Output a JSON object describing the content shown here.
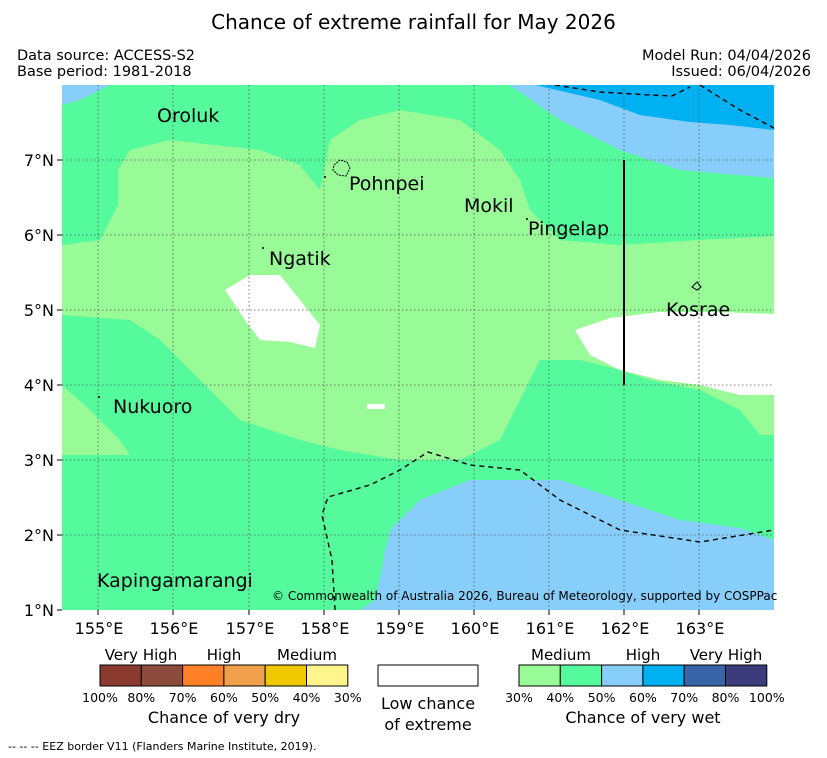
{
  "title": "Chance of extreme rainfall for May 2026",
  "data_source": "Data source: ACCESS-S2",
  "base_period": "Base period: 1981-2018",
  "model_run": "Model Run: 04/04/2026",
  "issued": "Issued: 06/04/2026",
  "copyright": "© Commonwealth of Australia 2026, Bureau of Meteorology, supported by COSPPac",
  "footnote": "-- -- -- EEZ border V11 (Flanders Marine Institute, 2019).",
  "x_ticks": [
    "155°E",
    "156°E",
    "157°E",
    "158°E",
    "159°E",
    "160°E",
    "161°E",
    "162°E",
    "163°E"
  ],
  "y_ticks": [
    "7°N",
    "6°N",
    "5°N",
    "4°N",
    "3°N",
    "2°N",
    "1°N"
  ],
  "places": {
    "oroluk": "Oroluk",
    "pohnpei": "Pohnpei",
    "mokil": "Mokil",
    "pingelap": "Pingelap",
    "ngatik": "Ngatik",
    "kosrae": "Kosrae",
    "nukuoro": "Nukuoro",
    "kapingamarangi": "Kapingamarangi"
  },
  "legend": {
    "dry": {
      "labels": {
        "very_high": "Very High",
        "high": "High",
        "medium": "Medium"
      },
      "colors": [
        "#8b3a2f",
        "#8c4b3c",
        "#ff8027",
        "#f0a04b",
        "#f0c800",
        "#fff58c"
      ],
      "ticks": [
        "100%",
        "80%",
        "70%",
        "60%",
        "50%",
        "40%",
        "30%"
      ],
      "caption": "Chance of very dry"
    },
    "low": {
      "line1": "Low chance",
      "line2": "of extreme"
    },
    "wet": {
      "labels": {
        "medium": "Medium",
        "high": "High",
        "very_high": "Very High"
      },
      "colors": [
        "#98fb98",
        "#55fa9d",
        "#87cefa",
        "#00b0f0",
        "#3a64a8",
        "#3c3c7c"
      ],
      "ticks": [
        "30%",
        "40%",
        "50%",
        "60%",
        "70%",
        "80%",
        "100%"
      ],
      "caption": "Chance of very wet"
    }
  },
  "colors": {
    "medium_30_40": "#98fb98",
    "medium_40_50": "#55fa9d",
    "high_50_60": "#87cefa",
    "high_60_70": "#00b0f0",
    "low_chance": "#ffffff"
  }
}
